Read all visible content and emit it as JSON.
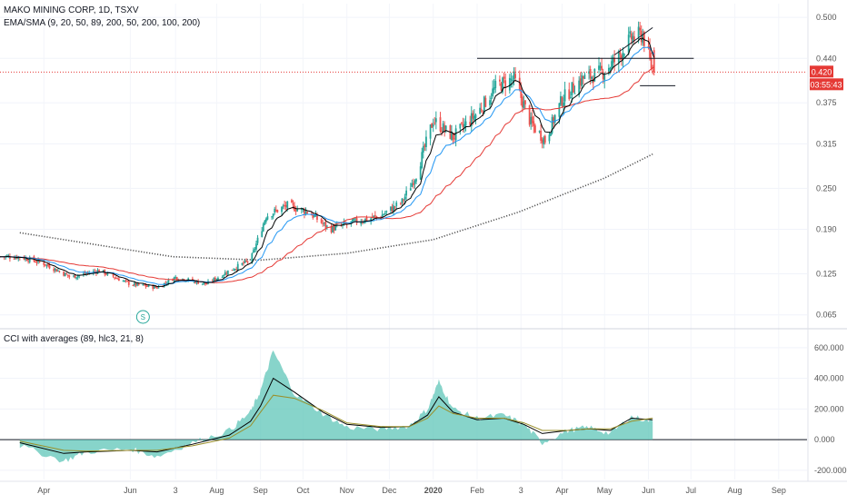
{
  "header": {
    "symbol_title": "MAKO MINING CORP, 1D, TSXV",
    "ma_legend": "EMA/SMA (9, 20, 50, 89, 200, 50, 200, 100, 200)",
    "cci_legend": "CCI with averages (89, hlc3, 21, 8)"
  },
  "colors": {
    "up_candle": "#26a69a",
    "down_candle": "#ef5350",
    "ema_fast": "#000000",
    "ema_mid": "#2196f3",
    "sma_red": "#e53935",
    "sma_200": "#555555",
    "cci_fill": "#5fc6b8",
    "price_badge": "#e53935",
    "last_price_line": "#e53935"
  },
  "price_badge": {
    "price": "0.420",
    "countdown": "03:55:43"
  },
  "chart_data": [
    {
      "type": "candlestick",
      "title": "MAKO MINING CORP, 1D, TSXV",
      "ylim": [
        0.05,
        0.52
      ],
      "y_ticks": [
        "0.500",
        "0.440",
        "0.375",
        "0.315",
        "0.250",
        "0.190",
        "0.125",
        "0.065"
      ],
      "x_ticks": [
        "Apr",
        "Jun",
        "3",
        "Aug",
        "Sep",
        "Oct",
        "Nov",
        "Dec",
        "2020",
        "Feb",
        "3",
        "Apr",
        "May",
        "Jun",
        "Jul",
        "Aug",
        "Sep"
      ],
      "x_tick_date_labels": [
        "2019-04",
        "2019-06",
        "2019-07-03",
        "2019-08",
        "2019-09",
        "2019-10",
        "2019-11",
        "2019-12",
        "2020-01",
        "2020-02",
        "2020-03-03",
        "2020-04",
        "2020-05",
        "2020-06",
        "2020-07",
        "2020-08",
        "2020-09"
      ],
      "close_anchors": [
        [
          "2019-03-15",
          0.15
        ],
        [
          "2019-04-01",
          0.14
        ],
        [
          "2019-04-20",
          0.12
        ],
        [
          "2019-05-10",
          0.13
        ],
        [
          "2019-06-01",
          0.11
        ],
        [
          "2019-06-20",
          0.105
        ],
        [
          "2019-07-03",
          0.12
        ],
        [
          "2019-07-25",
          0.11
        ],
        [
          "2019-08-10",
          0.13
        ],
        [
          "2019-08-25",
          0.145
        ],
        [
          "2019-09-05",
          0.21
        ],
        [
          "2019-09-20",
          0.225
        ],
        [
          "2019-10-05",
          0.215
        ],
        [
          "2019-10-20",
          0.19
        ],
        [
          "2019-11-05",
          0.2
        ],
        [
          "2019-11-25",
          0.21
        ],
        [
          "2019-12-10",
          0.23
        ],
        [
          "2019-12-20",
          0.27
        ],
        [
          "2020-01-01",
          0.35
        ],
        [
          "2020-01-15",
          0.325
        ],
        [
          "2020-02-01",
          0.36
        ],
        [
          "2020-02-15",
          0.4
        ],
        [
          "2020-02-27",
          0.41
        ],
        [
          "2020-03-10",
          0.345
        ],
        [
          "2020-03-20",
          0.32
        ],
        [
          "2020-04-01",
          0.38
        ],
        [
          "2020-04-15",
          0.41
        ],
        [
          "2020-04-30",
          0.42
        ],
        [
          "2020-05-10",
          0.44
        ],
        [
          "2020-05-20",
          0.47
        ],
        [
          "2020-05-28",
          0.475
        ],
        [
          "2020-06-04",
          0.42
        ]
      ],
      "series": [
        {
          "name": "EMA 9",
          "color": "#000000"
        },
        {
          "name": "EMA 20",
          "color": "#2196f3"
        },
        {
          "name": "SMA 50",
          "color": "#e53935"
        },
        {
          "name": "SMA 200",
          "color": "#555555",
          "dotted": true,
          "points": [
            [
              "2019-03-15",
              0.185
            ],
            [
              "2019-07-01",
              0.15
            ],
            [
              "2019-09-01",
              0.145
            ],
            [
              "2019-11-01",
              0.155
            ],
            [
              "2020-01-01",
              0.175
            ],
            [
              "2020-03-01",
              0.215
            ],
            [
              "2020-05-01",
              0.265
            ],
            [
              "2020-06-04",
              0.3
            ]
          ]
        }
      ],
      "annotations": [
        {
          "type": "hline",
          "price": 0.44,
          "from": "2020-02-01",
          "to": "2020-07-03"
        },
        {
          "type": "hline",
          "price": 0.4,
          "from": "2020-05-26",
          "to": "2020-06-20"
        },
        {
          "type": "trendline",
          "from": [
            "2020-05-08",
            0.445
          ],
          "to": [
            "2020-06-04",
            0.485
          ]
        },
        {
          "type": "last_price_line",
          "price": 0.42
        },
        {
          "type": "event_marker",
          "label": "S",
          "date": "2019-06-10"
        }
      ]
    },
    {
      "type": "area",
      "title": "CCI with averages (89, hlc3, 21, 8)",
      "ylim": [
        -260,
        700
      ],
      "y_ticks": [
        "600.000",
        "400.000",
        "200.000",
        "0.000",
        "-200.000"
      ],
      "x": [
        "2019-03-15",
        "2019-04-15",
        "2019-05-01",
        "2019-06-01",
        "2019-06-20",
        "2019-07-15",
        "2019-08-10",
        "2019-08-25",
        "2019-09-01",
        "2019-09-10",
        "2019-09-25",
        "2019-10-15",
        "2019-11-01",
        "2019-11-25",
        "2019-12-15",
        "2019-12-28",
        "2020-01-05",
        "2020-01-15",
        "2020-02-01",
        "2020-02-20",
        "2020-03-05",
        "2020-03-18",
        "2020-04-05",
        "2020-04-20",
        "2020-05-05",
        "2020-05-20",
        "2020-06-04"
      ],
      "series": [
        {
          "name": "CCI",
          "color": "#5fc6b8",
          "values": [
            -40,
            -140,
            -80,
            -60,
            -110,
            -20,
            60,
            180,
            320,
            580,
            300,
            170,
            80,
            70,
            90,
            200,
            380,
            200,
            140,
            160,
            100,
            -20,
            60,
            80,
            40,
            150,
            120
          ]
        },
        {
          "name": "CCI avg 21",
          "color": "#000000",
          "values": [
            -20,
            -90,
            -80,
            -70,
            -80,
            -30,
            30,
            120,
            220,
            400,
            310,
            180,
            100,
            80,
            85,
            160,
            280,
            180,
            130,
            140,
            100,
            40,
            60,
            70,
            60,
            140,
            130
          ]
        },
        {
          "name": "CCI avg 8",
          "color": "#9a8f2a",
          "values": [
            -10,
            -70,
            -75,
            -70,
            -70,
            -40,
            10,
            90,
            180,
            290,
            270,
            190,
            110,
            85,
            85,
            140,
            220,
            170,
            140,
            140,
            110,
            60,
            60,
            70,
            70,
            120,
            140
          ]
        }
      ]
    }
  ]
}
